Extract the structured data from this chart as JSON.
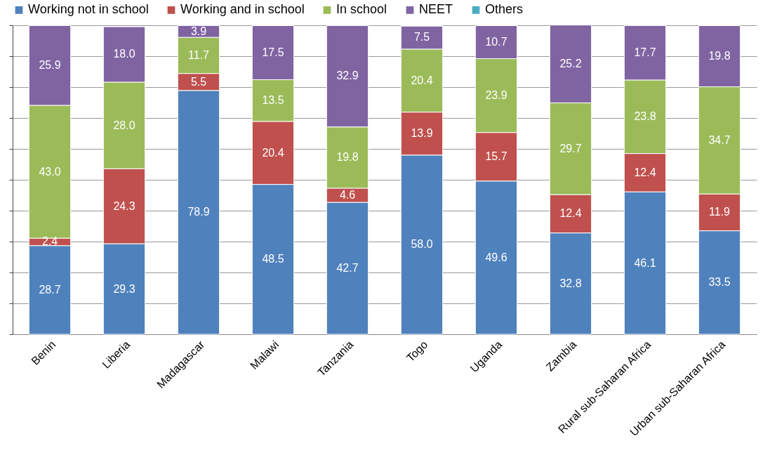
{
  "chart_data": {
    "type": "bar",
    "stacked": true,
    "categories": [
      "Benin",
      "Liberia",
      "Madagascar",
      "Malawi",
      "Tanzania",
      "Togo",
      "Uganda",
      "Zambia",
      "Rural sub-Saharan Africa",
      "Urban sub-Saharan Africa"
    ],
    "series": [
      {
        "name": "Working not in school",
        "color": "#4f81bd",
        "values": [
          28.7,
          29.3,
          78.9,
          48.5,
          42.7,
          58,
          49.6,
          32.8,
          46.1,
          33.5
        ],
        "value_labels": [
          "28.7",
          "29.3",
          "78.9",
          "48.5",
          "42.7",
          "58.0",
          "49.6",
          "32.8",
          "46.1",
          "33.5"
        ]
      },
      {
        "name": "Working and in school",
        "color": "#c0504d",
        "values": [
          2.4,
          24.3,
          5.5,
          20.4,
          4.6,
          13.9,
          15.7,
          12.4,
          12.4,
          11.9
        ],
        "value_labels": [
          "2.4",
          "24.3",
          "5.5",
          "20.4",
          "4.6",
          "13.9",
          "15.7",
          "12.4",
          "12.4",
          "11.9"
        ]
      },
      {
        "name": "In school",
        "color": "#9bbb59",
        "values": [
          43,
          28,
          11.7,
          13.5,
          19.8,
          20.4,
          23.9,
          29.7,
          23.8,
          34.7
        ],
        "value_labels": [
          "43.0",
          "28.0",
          "11.7",
          "13.5",
          "19.8",
          "20.4",
          "23.9",
          "29.7",
          "23.8",
          "34.7"
        ]
      },
      {
        "name": "NEET",
        "color": "#8064a2",
        "values": [
          25.9,
          18,
          3.9,
          17.5,
          32.9,
          7.5,
          10.7,
          25.2,
          17.7,
          19.8
        ],
        "value_labels": [
          "25.9",
          "18.0",
          "3.9",
          "17.5",
          "32.9",
          "7.5",
          "10.7",
          "25.2",
          "17.7",
          "19.8"
        ]
      },
      {
        "name": "Others",
        "color": "#4bacc6",
        "values": [
          null,
          null,
          null,
          null,
          null,
          null,
          null,
          null,
          null,
          null
        ]
      }
    ],
    "ylim": [
      0,
      100
    ],
    "yticks": [
      {
        "value": 0,
        "label": null
      },
      {
        "value": 10,
        "label": null
      },
      {
        "value": 20,
        "label": null
      },
      {
        "value": 30,
        "label": null
      },
      {
        "value": 40,
        "label": null
      },
      {
        "value": 50,
        "label": null
      },
      {
        "value": 60,
        "label": null
      },
      {
        "value": 70,
        "label": null
      },
      {
        "value": 80,
        "label": null
      },
      {
        "value": 90,
        "label": null
      },
      {
        "value": 100,
        "label": null
      }
    ],
    "grid": "y",
    "tick_labels": "x",
    "legend": "top"
  }
}
